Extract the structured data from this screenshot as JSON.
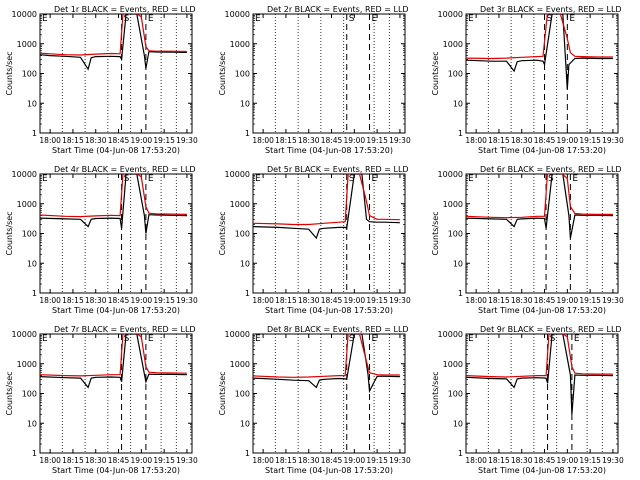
{
  "figure": {
    "tick_labels_x": [
      "18:00",
      "18:15",
      "18:30",
      "18:45",
      "19:00",
      "19:15",
      "19:30"
    ],
    "start_time_label": "Start Time (04-Jun-08 17:53:20)",
    "ylabel": "Counts/sec",
    "marker_labels": {
      "S": "S",
      "E": "E"
    }
  },
  "colors": {
    "events": "#000000",
    "lld": "#e00000",
    "background": "#ffffff"
  },
  "chart_data": [
    {
      "type": "line",
      "title": "Det 1r BLACK = Events, RED = LLD",
      "xlabel": "Start Time (04-Jun-08 17:53:20)",
      "ylabel": "Counts/sec",
      "xlim": [
        "17:53:20",
        "19:33:20"
      ],
      "ylim": [
        1,
        10000
      ],
      "yscale": "log",
      "yticks": [
        1,
        10,
        100,
        1000,
        10000
      ],
      "xticks": [
        "18:00",
        "18:15",
        "18:30",
        "18:45",
        "19:00",
        "19:15",
        "19:30"
      ],
      "dashed_lines": [
        "18:47",
        "19:03"
      ],
      "dotted_lines": [
        "18:08",
        "18:23",
        "18:38",
        "18:53",
        "19:13",
        "19:23"
      ],
      "marker_S": "18:47",
      "marker_E": "19:03",
      "series": [
        {
          "name": "Events",
          "x": [
            "17:53:20",
            "18:00",
            "18:10",
            "18:20",
            "18:25",
            "18:27",
            "18:30",
            "18:40",
            "18:46",
            "18:47",
            "18:50",
            "18:57",
            "19:02",
            "19:03",
            "19:05",
            "19:10",
            "19:20",
            "19:30"
          ],
          "y": [
            430,
            400,
            380,
            350,
            140,
            340,
            370,
            380,
            370,
            300,
            10000,
            10000,
            400,
            150,
            540,
            530,
            520,
            510
          ]
        },
        {
          "name": "LLD",
          "x": [
            "17:53:20",
            "18:00",
            "18:10",
            "18:20",
            "18:30",
            "18:40",
            "18:46",
            "18:48",
            "18:55",
            "19:00",
            "19:03",
            "19:05",
            "19:10",
            "19:20",
            "19:30"
          ],
          "y": [
            480,
            460,
            430,
            420,
            450,
            470,
            460,
            12000,
            12000,
            8000,
            800,
            580,
            560,
            560,
            550
          ]
        }
      ]
    },
    {
      "type": "line",
      "title": "Det 2r BLACK = Events, RED = LLD",
      "xlabel": "Start Time (04-Jun-08 17:53:20)",
      "ylabel": "Counts/sec",
      "xlim": [
        "17:53:20",
        "19:33:20"
      ],
      "ylim": [
        1,
        10000
      ],
      "yscale": "log",
      "yticks": [
        1,
        10,
        100,
        1000,
        10000
      ],
      "xticks": [
        "18:00",
        "18:15",
        "18:30",
        "18:45",
        "19:00",
        "19:15",
        "19:30"
      ],
      "dashed_lines": [
        "18:55",
        "19:10"
      ],
      "dotted_lines": [
        "18:08",
        "18:23",
        "18:38",
        "18:53",
        "19:13",
        "19:23"
      ],
      "marker_S": "18:55",
      "marker_E": "19:10",
      "series": []
    },
    {
      "type": "line",
      "title": "Det 3r BLACK = Events, RED = LLD",
      "xlabel": "Start Time (04-Jun-08 17:53:20)",
      "ylabel": "Counts/sec",
      "xlim": [
        "17:53:20",
        "19:33:20"
      ],
      "ylim": [
        1,
        10000
      ],
      "yscale": "log",
      "yticks": [
        1,
        10,
        100,
        1000,
        10000
      ],
      "xticks": [
        "18:00",
        "18:15",
        "18:30",
        "18:45",
        "19:00",
        "19:15",
        "19:30"
      ],
      "dashed_lines": [
        "18:45",
        "19:00"
      ],
      "dotted_lines": [
        "18:08",
        "18:23",
        "18:38",
        "18:53",
        "19:13",
        "19:23"
      ],
      "marker_S": "18:45",
      "marker_E": "19:00",
      "series": [
        {
          "name": "Events",
          "x": [
            "17:53:20",
            "18:10",
            "18:20",
            "18:25",
            "18:27",
            "18:30",
            "18:40",
            "18:44",
            "18:45",
            "18:50",
            "18:57",
            "19:00",
            "19:01",
            "19:05",
            "19:10",
            "19:20",
            "19:30"
          ],
          "y": [
            280,
            260,
            260,
            120,
            250,
            270,
            280,
            260,
            200,
            10000,
            10000,
            30,
            200,
            320,
            330,
            320,
            320
          ]
        },
        {
          "name": "LLD",
          "x": [
            "17:53:20",
            "18:10",
            "18:20",
            "18:30",
            "18:40",
            "18:44",
            "18:47",
            "18:55",
            "19:00",
            "19:02",
            "19:05",
            "19:10",
            "19:20",
            "19:30"
          ],
          "y": [
            330,
            320,
            330,
            350,
            370,
            380,
            12000,
            12000,
            1500,
            500,
            380,
            370,
            360,
            360
          ]
        }
      ]
    },
    {
      "type": "line",
      "title": "Det 4r BLACK = Events, RED = LLD",
      "xlabel": "Start Time (04-Jun-08 17:53:20)",
      "ylabel": "Counts/sec",
      "xlim": [
        "17:53:20",
        "19:33:20"
      ],
      "ylim": [
        1,
        10000
      ],
      "yscale": "log",
      "yticks": [
        1,
        10,
        100,
        1000,
        10000
      ],
      "xticks": [
        "18:00",
        "18:15",
        "18:30",
        "18:45",
        "19:00",
        "19:15",
        "19:30"
      ],
      "dashed_lines": [
        "18:47",
        "19:03"
      ],
      "dotted_lines": [
        "18:08",
        "18:23",
        "18:38",
        "18:53",
        "19:13",
        "19:23"
      ],
      "marker_S": "18:47",
      "marker_E": "19:03",
      "series": [
        {
          "name": "Events",
          "x": [
            "17:53:20",
            "18:10",
            "18:20",
            "18:25",
            "18:27",
            "18:30",
            "18:40",
            "18:46",
            "18:47",
            "18:50",
            "18:57",
            "19:02",
            "19:03",
            "19:05",
            "19:10",
            "19:20",
            "19:30"
          ],
          "y": [
            330,
            310,
            300,
            170,
            300,
            320,
            330,
            320,
            150,
            10000,
            10000,
            400,
            100,
            430,
            420,
            410,
            400
          ]
        },
        {
          "name": "LLD",
          "x": [
            "17:53:20",
            "18:10",
            "18:20",
            "18:30",
            "18:40",
            "18:46",
            "18:48",
            "18:55",
            "19:00",
            "19:03",
            "19:05",
            "19:10",
            "19:20",
            "19:30"
          ],
          "y": [
            420,
            380,
            370,
            390,
            410,
            400,
            12000,
            12000,
            8000,
            800,
            480,
            460,
            450,
            440
          ]
        }
      ]
    },
    {
      "type": "line",
      "title": "Det 5r BLACK = Events, RED = LLD",
      "xlabel": "Start Time (04-Jun-08 17:53:20)",
      "ylabel": "Counts/sec",
      "xlim": [
        "17:53:20",
        "19:33:20"
      ],
      "ylim": [
        1,
        10000
      ],
      "yscale": "log",
      "yticks": [
        1,
        10,
        100,
        1000,
        10000
      ],
      "xticks": [
        "18:00",
        "18:15",
        "18:30",
        "18:45",
        "19:00",
        "19:15",
        "19:30"
      ],
      "dashed_lines": [
        "18:55",
        "19:10"
      ],
      "dotted_lines": [
        "18:08",
        "18:23",
        "18:38",
        "18:53",
        "19:13",
        "19:23"
      ],
      "marker_S": "18:55",
      "marker_E": "19:10",
      "series": [
        {
          "name": "Events",
          "x": [
            "17:53:20",
            "18:10",
            "18:20",
            "18:30",
            "18:35",
            "18:37",
            "18:40",
            "18:50",
            "18:54",
            "18:55",
            "19:00",
            "19:05",
            "19:08",
            "19:10",
            "19:15",
            "19:20",
            "19:30"
          ],
          "y": [
            170,
            160,
            150,
            140,
            70,
            140,
            150,
            160,
            160,
            150,
            10000,
            10000,
            300,
            250,
            240,
            240,
            230
          ]
        },
        {
          "name": "LLD",
          "x": [
            "17:53:20",
            "18:10",
            "18:20",
            "18:30",
            "18:40",
            "18:50",
            "18:54",
            "18:56",
            "19:03",
            "19:08",
            "19:10",
            "19:15",
            "19:20",
            "19:30"
          ],
          "y": [
            220,
            210,
            200,
            200,
            220,
            240,
            250,
            12000,
            12000,
            1200,
            400,
            300,
            300,
            290
          ]
        }
      ]
    },
    {
      "type": "line",
      "title": "Det 6r BLACK = Events, RED = LLD",
      "xlabel": "Start Time (04-Jun-08 17:53:20)",
      "ylabel": "Counts/sec",
      "xlim": [
        "17:53:20",
        "19:33:20"
      ],
      "ylim": [
        1,
        10000
      ],
      "yscale": "log",
      "yticks": [
        1,
        10,
        100,
        1000,
        10000
      ],
      "xticks": [
        "18:00",
        "18:15",
        "18:30",
        "18:45",
        "19:00",
        "19:15",
        "19:30"
      ],
      "dashed_lines": [
        "18:46",
        "19:02"
      ],
      "dotted_lines": [
        "18:08",
        "18:23",
        "18:38",
        "18:53",
        "19:13",
        "19:23"
      ],
      "marker_S": "18:46",
      "marker_E": "19:02",
      "series": [
        {
          "name": "Events",
          "x": [
            "17:53:20",
            "18:10",
            "18:20",
            "18:25",
            "18:27",
            "18:30",
            "18:40",
            "18:45",
            "18:46",
            "18:50",
            "18:57",
            "19:01",
            "19:02",
            "19:05",
            "19:10",
            "19:20",
            "19:30"
          ],
          "y": [
            330,
            310,
            300,
            170,
            300,
            310,
            330,
            320,
            150,
            10000,
            10000,
            400,
            70,
            420,
            410,
            410,
            400
          ]
        },
        {
          "name": "LLD",
          "x": [
            "17:53:20",
            "18:10",
            "18:20",
            "18:30",
            "18:40",
            "18:45",
            "18:47",
            "18:55",
            "19:00",
            "19:02",
            "19:05",
            "19:10",
            "19:20",
            "19:30"
          ],
          "y": [
            380,
            350,
            340,
            350,
            380,
            380,
            12000,
            12000,
            7000,
            800,
            470,
            450,
            440,
            440
          ]
        }
      ]
    },
    {
      "type": "line",
      "title": "Det 7r BLACK = Events, RED = LLD",
      "xlabel": "Start Time (04-Jun-08 17:53:20)",
      "ylabel": "Counts/sec",
      "xlim": [
        "17:53:20",
        "19:33:20"
      ],
      "ylim": [
        1,
        10000
      ],
      "yscale": "log",
      "yticks": [
        1,
        10,
        100,
        1000,
        10000
      ],
      "xticks": [
        "18:00",
        "18:15",
        "18:30",
        "18:45",
        "19:00",
        "19:15",
        "19:30"
      ],
      "dashed_lines": [
        "18:47",
        "19:03"
      ],
      "dotted_lines": [
        "18:08",
        "18:23",
        "18:38",
        "18:53",
        "19:13",
        "19:23"
      ],
      "marker_S": "18:47",
      "marker_E": "19:03",
      "series": [
        {
          "name": "Events",
          "x": [
            "17:53:20",
            "18:10",
            "18:20",
            "18:25",
            "18:27",
            "18:30",
            "18:40",
            "18:46",
            "18:47",
            "18:50",
            "18:57",
            "19:02",
            "19:03",
            "19:05",
            "19:10",
            "19:20",
            "19:30"
          ],
          "y": [
            370,
            340,
            330,
            160,
            330,
            350,
            360,
            350,
            250,
            10000,
            10000,
            450,
            250,
            450,
            440,
            440,
            430
          ]
        },
        {
          "name": "LLD",
          "x": [
            "17:53:20",
            "18:10",
            "18:20",
            "18:30",
            "18:40",
            "18:46",
            "18:48",
            "18:55",
            "19:00",
            "19:03",
            "19:05",
            "19:10",
            "19:20",
            "19:30"
          ],
          "y": [
            430,
            400,
            390,
            410,
            430,
            430,
            12000,
            12000,
            8000,
            800,
            520,
            500,
            490,
            480
          ]
        }
      ]
    },
    {
      "type": "line",
      "title": "Det 8r BLACK = Events, RED = LLD",
      "xlabel": "Start Time (04-Jun-08 17:53:20)",
      "ylabel": "Counts/sec",
      "xlim": [
        "17:53:20",
        "19:33:20"
      ],
      "ylim": [
        1,
        10000
      ],
      "yscale": "log",
      "yticks": [
        1,
        10,
        100,
        1000,
        10000
      ],
      "xticks": [
        "18:00",
        "18:15",
        "18:30",
        "18:45",
        "19:00",
        "19:15",
        "19:30"
      ],
      "dashed_lines": [
        "18:55",
        "19:10"
      ],
      "dotted_lines": [
        "18:08",
        "18:23",
        "18:38",
        "18:53",
        "19:13",
        "19:23"
      ],
      "marker_S": "18:55",
      "marker_E": "19:10",
      "series": [
        {
          "name": "Events",
          "x": [
            "17:53:20",
            "18:10",
            "18:20",
            "18:30",
            "18:35",
            "18:37",
            "18:40",
            "18:50",
            "18:54",
            "18:55",
            "19:00",
            "19:05",
            "19:09",
            "19:10",
            "19:15",
            "19:20",
            "19:30"
          ],
          "y": [
            330,
            300,
            280,
            270,
            160,
            280,
            300,
            320,
            310,
            300,
            10000,
            10000,
            450,
            120,
            380,
            380,
            370
          ]
        },
        {
          "name": "LLD",
          "x": [
            "17:53:20",
            "18:10",
            "18:20",
            "18:30",
            "18:40",
            "18:50",
            "18:54",
            "18:56",
            "19:03",
            "19:08",
            "19:10",
            "19:15",
            "19:20",
            "19:30"
          ],
          "y": [
            390,
            360,
            350,
            360,
            380,
            400,
            400,
            12000,
            12000,
            1200,
            500,
            430,
            420,
            420
          ]
        }
      ]
    },
    {
      "type": "line",
      "title": "Det 9r BLACK = Events, RED = LLD",
      "xlabel": "Start Time (04-Jun-08 17:53:20)",
      "ylabel": "Counts/sec",
      "xlim": [
        "17:53:20",
        "19:33:20"
      ],
      "ylim": [
        1,
        10000
      ],
      "yscale": "log",
      "yticks": [
        1,
        10,
        100,
        1000,
        10000
      ],
      "xticks": [
        "18:00",
        "18:15",
        "18:30",
        "18:45",
        "19:00",
        "19:15",
        "19:30"
      ],
      "dashed_lines": [
        "18:47",
        "19:03"
      ],
      "dotted_lines": [
        "18:08",
        "18:23",
        "18:38",
        "18:53",
        "19:13",
        "19:23"
      ],
      "marker_S": "18:47",
      "marker_E": "19:03",
      "series": [
        {
          "name": "Events",
          "x": [
            "17:53:20",
            "18:10",
            "18:20",
            "18:25",
            "18:27",
            "18:30",
            "18:40",
            "18:46",
            "18:47",
            "18:50",
            "18:57",
            "19:02",
            "19:03",
            "19:05",
            "19:10",
            "19:20",
            "19:30"
          ],
          "y": [
            350,
            320,
            310,
            160,
            310,
            330,
            340,
            330,
            220,
            10000,
            10000,
            420,
            20,
            420,
            410,
            410,
            400
          ]
        },
        {
          "name": "LLD",
          "x": [
            "17:53:20",
            "18:10",
            "18:20",
            "18:30",
            "18:40",
            "18:46",
            "18:48",
            "18:55",
            "19:00",
            "19:03",
            "19:05",
            "19:10",
            "19:20",
            "19:30"
          ],
          "y": [
            400,
            370,
            360,
            380,
            400,
            400,
            12000,
            12000,
            8000,
            800,
            480,
            460,
            450,
            450
          ]
        }
      ]
    }
  ]
}
